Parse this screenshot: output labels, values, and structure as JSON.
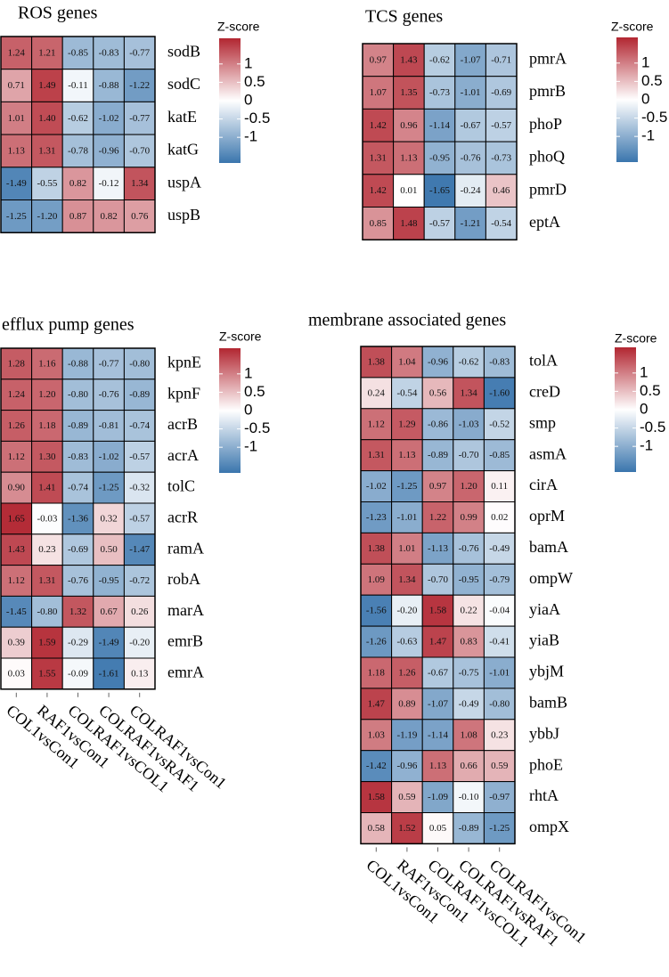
{
  "colors": {
    "low": "#3a75ad",
    "mid": "#ffffff",
    "high": "#b22631"
  },
  "chart_data": [
    {
      "id": "ros",
      "type": "heatmap",
      "title": "ROS genes",
      "legend_title": "Z-score",
      "legend_ticks": [
        "1",
        "0.5",
        "0",
        "-0.5",
        "-1"
      ],
      "legend_tick_values": [
        1,
        0.5,
        0,
        -0.5,
        -1
      ],
      "color_range": [
        -1.7,
        1.7
      ],
      "rows": [
        "sodB",
        "sodC",
        "katE",
        "katG",
        "uspA",
        "uspB"
      ],
      "columns": [],
      "values": [
        [
          1.24,
          1.21,
          -0.85,
          -0.83,
          -0.77
        ],
        [
          0.71,
          1.49,
          -0.11,
          -0.88,
          -1.22
        ],
        [
          1.01,
          1.4,
          -0.62,
          -1.02,
          -0.77
        ],
        [
          1.13,
          1.31,
          -0.78,
          -0.96,
          -0.7
        ],
        [
          -1.49,
          -0.55,
          0.82,
          -0.12,
          1.34
        ],
        [
          -1.25,
          -1.2,
          0.87,
          0.82,
          0.76
        ]
      ]
    },
    {
      "id": "tcs",
      "type": "heatmap",
      "title": "TCS genes",
      "legend_title": "Z-score",
      "legend_ticks": [
        "1",
        "0.5",
        "0",
        "-0.5",
        "-1"
      ],
      "legend_tick_values": [
        1,
        0.5,
        0,
        -0.5,
        -1
      ],
      "color_range": [
        -1.7,
        1.7
      ],
      "rows": [
        "pmrA",
        "pmrB",
        "phoP",
        "phoQ",
        "pmrD",
        "eptA"
      ],
      "columns": [],
      "values": [
        [
          0.97,
          1.43,
          -0.62,
          -1.07,
          -0.71
        ],
        [
          1.07,
          1.35,
          -0.73,
          -1.01,
          -0.69
        ],
        [
          1.42,
          0.96,
          -1.14,
          -0.67,
          -0.57
        ],
        [
          1.31,
          1.13,
          -0.95,
          -0.76,
          -0.73
        ],
        [
          1.42,
          0.01,
          -1.65,
          -0.24,
          0.46
        ],
        [
          0.85,
          1.48,
          -0.57,
          -1.21,
          -0.54
        ]
      ]
    },
    {
      "id": "efflux",
      "type": "heatmap",
      "title": "efflux pump genes",
      "legend_title": "Z-score",
      "legend_ticks": [
        "1",
        "0.5",
        "0",
        "-0.5",
        "-1"
      ],
      "legend_tick_values": [
        1,
        0.5,
        0,
        -0.5,
        -1
      ],
      "color_range": [
        -1.7,
        1.7
      ],
      "rows": [
        "kpnE",
        "kpnF",
        "acrB",
        "acrA",
        "tolC",
        "acrR",
        "ramA",
        "robA",
        "marA",
        "emrB",
        "emrA"
      ],
      "columns": [
        "COL1vsCon1",
        "RAF1vsCon1",
        "COLRAF1vsCOL1",
        "COLRAF1vsRAF1",
        "COLRAF1vsCon1"
      ],
      "values": [
        [
          1.28,
          1.16,
          -0.88,
          -0.77,
          -0.8
        ],
        [
          1.24,
          1.2,
          -0.8,
          -0.76,
          -0.89
        ],
        [
          1.26,
          1.18,
          -0.89,
          -0.81,
          -0.74
        ],
        [
          1.12,
          1.3,
          -0.83,
          -1.02,
          -0.57
        ],
        [
          0.9,
          1.41,
          -0.74,
          -1.25,
          -0.32
        ],
        [
          1.65,
          -0.03,
          -1.36,
          0.32,
          -0.57
        ],
        [
          1.43,
          0.23,
          -0.69,
          0.5,
          -1.47
        ],
        [
          1.12,
          1.31,
          -0.76,
          -0.95,
          -0.72
        ],
        [
          -1.45,
          -0.8,
          1.32,
          0.67,
          0.26
        ],
        [
          0.39,
          1.59,
          -0.29,
          -1.49,
          -0.2
        ],
        [
          0.03,
          1.55,
          -0.09,
          -1.61,
          0.13
        ]
      ]
    },
    {
      "id": "membrane",
      "type": "heatmap",
      "title": "membrane associated genes",
      "legend_title": "Z-score",
      "legend_ticks": [
        "1",
        "0.5",
        "0",
        "-0.5",
        "-1"
      ],
      "legend_tick_values": [
        1,
        0.5,
        0,
        -0.5,
        -1
      ],
      "color_range": [
        -1.7,
        1.7
      ],
      "rows": [
        "tolA",
        "creD",
        "smp",
        "asmA",
        "cirA",
        "oprM",
        "bamA",
        "ompW",
        "yiaA",
        "yiaB",
        "ybjM",
        "bamB",
        "ybbJ",
        "phoE",
        "rhtA",
        "ompX"
      ],
      "columns": [
        "COL1vsCon1",
        "RAF1vsCon1",
        "COLRAF1vsCOL1",
        "COLRAF1vsRAF1",
        "COLRAF1vsCon1"
      ],
      "values": [
        [
          1.38,
          1.04,
          -0.96,
          -0.62,
          -0.83
        ],
        [
          0.24,
          -0.54,
          0.56,
          1.34,
          -1.6
        ],
        [
          1.12,
          1.29,
          -0.86,
          -1.03,
          -0.52
        ],
        [
          1.31,
          1.13,
          -0.89,
          -0.7,
          -0.85
        ],
        [
          -1.02,
          -1.25,
          0.97,
          1.2,
          0.11
        ],
        [
          -1.23,
          -1.01,
          1.22,
          0.99,
          0.02
        ],
        [
          1.38,
          1.01,
          -1.13,
          -0.76,
          -0.49
        ],
        [
          1.09,
          1.34,
          -0.7,
          -0.95,
          -0.79
        ],
        [
          -1.56,
          -0.2,
          1.58,
          0.22,
          -0.04
        ],
        [
          -1.26,
          -0.63,
          1.47,
          0.83,
          -0.41
        ],
        [
          1.18,
          1.26,
          -0.67,
          -0.75,
          -1.01
        ],
        [
          1.47,
          0.89,
          -1.07,
          -0.49,
          -0.8
        ],
        [
          1.03,
          -1.19,
          -1.14,
          1.08,
          0.23
        ],
        [
          -1.42,
          -0.96,
          1.13,
          0.66,
          0.59
        ],
        [
          1.58,
          0.59,
          -1.09,
          -0.1,
          -0.97
        ],
        [
          0.58,
          1.52,
          0.05,
          -0.89,
          -1.25
        ]
      ]
    }
  ]
}
